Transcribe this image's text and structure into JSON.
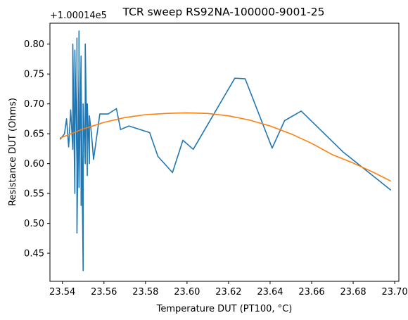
{
  "chart_data": {
    "type": "line",
    "title": "TCR sweep RS92NA-100000-9001-25",
    "xlabel": "Temperature DUT (PT100, °C)",
    "ylabel": "Resistance DUT (Ohms)",
    "y_offset_label": "+1.00014e5",
    "xlim": [
      23.534,
      23.702
    ],
    "ylim": [
      0.403,
      0.835
    ],
    "x_ticks": [
      23.54,
      23.56,
      23.58,
      23.6,
      23.62,
      23.64,
      23.66,
      23.68,
      23.7
    ],
    "x_tick_labels": [
      "23.54",
      "23.56",
      "23.58",
      "23.60",
      "23.62",
      "23.64",
      "23.66",
      "23.68",
      "23.70"
    ],
    "y_ticks": [
      0.45,
      0.5,
      0.55,
      0.6,
      0.65,
      0.7,
      0.75,
      0.8
    ],
    "y_tick_labels": [
      "0.45",
      "0.50",
      "0.55",
      "0.60",
      "0.65",
      "0.70",
      "0.75",
      "0.80"
    ],
    "grid": false,
    "series": [
      {
        "color": "#1f77b4",
        "points": [
          [
            23.539,
            0.641
          ],
          [
            23.541,
            0.65
          ],
          [
            23.542,
            0.675
          ],
          [
            23.543,
            0.628
          ],
          [
            23.544,
            0.69
          ],
          [
            23.545,
            0.624
          ],
          [
            23.545,
            0.8
          ],
          [
            23.546,
            0.55
          ],
          [
            23.546,
            0.79
          ],
          [
            23.547,
            0.6
          ],
          [
            23.547,
            0.81
          ],
          [
            23.547,
            0.484
          ],
          [
            23.548,
            0.76
          ],
          [
            23.548,
            0.822
          ],
          [
            23.548,
            0.56
          ],
          [
            23.549,
            0.78
          ],
          [
            23.549,
            0.53
          ],
          [
            23.549,
            0.74
          ],
          [
            23.55,
            0.421
          ],
          [
            23.55,
            0.7
          ],
          [
            23.551,
            0.6
          ],
          [
            23.551,
            0.8
          ],
          [
            23.552,
            0.58
          ],
          [
            23.552,
            0.7
          ],
          [
            23.553,
            0.6
          ],
          [
            23.553,
            0.68
          ],
          [
            23.554,
            0.65
          ],
          [
            23.555,
            0.607
          ],
          [
            23.558,
            0.683
          ],
          [
            23.562,
            0.683
          ],
          [
            23.566,
            0.692
          ],
          [
            23.568,
            0.657
          ],
          [
            23.572,
            0.663
          ],
          [
            23.582,
            0.652
          ],
          [
            23.586,
            0.612
          ],
          [
            23.593,
            0.585
          ],
          [
            23.598,
            0.639
          ],
          [
            23.603,
            0.624
          ],
          [
            23.623,
            0.743
          ],
          [
            23.628,
            0.742
          ],
          [
            23.641,
            0.626
          ],
          [
            23.647,
            0.672
          ],
          [
            23.655,
            0.688
          ],
          [
            23.675,
            0.62
          ],
          [
            23.698,
            0.556
          ]
        ]
      },
      {
        "color": "#ff7f0e",
        "points": [
          [
            23.539,
            0.643
          ],
          [
            23.545,
            0.651
          ],
          [
            23.55,
            0.658
          ],
          [
            23.56,
            0.669
          ],
          [
            23.57,
            0.677
          ],
          [
            23.58,
            0.682
          ],
          [
            23.59,
            0.684
          ],
          [
            23.6,
            0.685
          ],
          [
            23.61,
            0.684
          ],
          [
            23.62,
            0.68
          ],
          [
            23.63,
            0.673
          ],
          [
            23.64,
            0.663
          ],
          [
            23.65,
            0.65
          ],
          [
            23.66,
            0.634
          ],
          [
            23.67,
            0.615
          ],
          [
            23.68,
            0.601
          ],
          [
            23.69,
            0.585
          ],
          [
            23.698,
            0.571
          ]
        ]
      }
    ]
  }
}
